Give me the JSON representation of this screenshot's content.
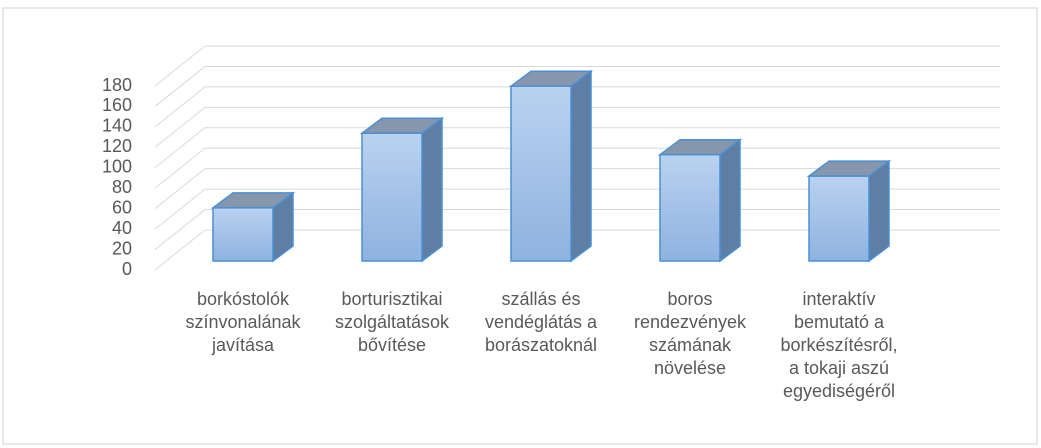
{
  "chart_data": {
    "type": "bar3d",
    "categories": [
      "borkóstolók\nszínvonalának\njavítása",
      "borturisztikai\nszolgáltatások\nbővítése",
      "szállás és\nvendéglátás a\nborászatoknál",
      "boros\nrendezvények\nszámának\nnövelése",
      "interaktív\nbemutató a\nborkészítésről,\na tokaji aszú\negyediségéről"
    ],
    "values": [
      52,
      125,
      171,
      104,
      83
    ],
    "color": "#9dbfe8",
    "ylim": [
      0,
      180
    ],
    "yticks": [
      0,
      20,
      40,
      60,
      80,
      100,
      120,
      140,
      160,
      180
    ],
    "grid": true
  }
}
